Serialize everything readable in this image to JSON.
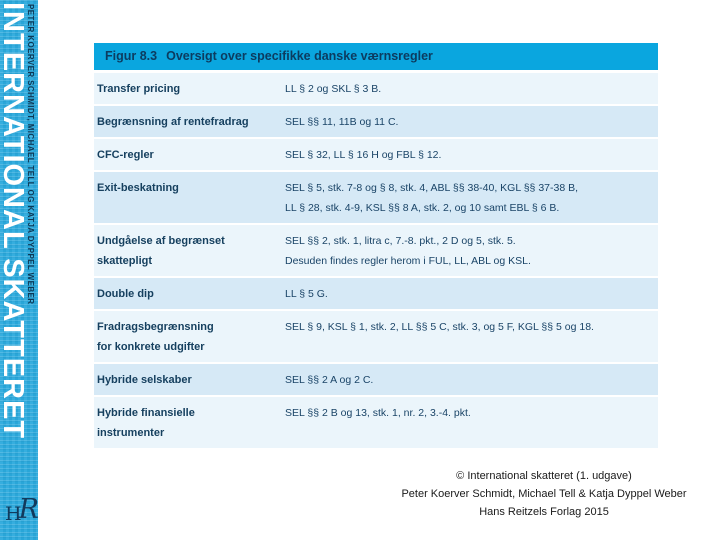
{
  "spine": {
    "title": "INTERNATIONAL SKATTERET",
    "authors": "PETER KOERVER SCHMIDT, MICHAEL TELL OG KATJA DYPPEL WEBER",
    "logo_h": "H",
    "logo_r": "R"
  },
  "figure": {
    "title_label": "Figur 8.3",
    "title_text": "Oversigt over specifikke danske værnsregler",
    "rows": [
      {
        "label_lines": [
          "Transfer pricing"
        ],
        "value_lines": [
          "LL § 2 og SKL § 3 B."
        ]
      },
      {
        "label_lines": [
          "Begrænsning af rentefradrag"
        ],
        "value_lines": [
          "SEL §§ 11, 11B og 11 C."
        ]
      },
      {
        "label_lines": [
          "CFC-regler"
        ],
        "value_lines": [
          "SEL § 32, LL § 16 H og FBL § 12."
        ]
      },
      {
        "label_lines": [
          "Exit-beskatning"
        ],
        "value_lines": [
          "SEL § 5, stk. 7-8 og § 8, stk. 4, ABL §§ 38-40, KGL §§ 37-38 B,",
          "LL § 28, stk. 4-9, KSL §§ 8 A, stk. 2, og 10 samt EBL § 6 B."
        ]
      },
      {
        "label_lines": [
          "Undgåelse af begrænset",
          "skattepligt"
        ],
        "value_lines": [
          "SEL §§ 2, stk. 1, litra c, 7.-8. pkt., 2 D og 5, stk. 5.",
          "Desuden findes regler herom i FUL, LL, ABL og KSL."
        ]
      },
      {
        "label_lines": [
          "Double dip"
        ],
        "value_lines": [
          "LL § 5 G."
        ]
      },
      {
        "label_lines": [
          "Fradragsbegrænsning",
          "for konkrete udgifter"
        ],
        "value_lines": [
          "SEL § 9, KSL § 1, stk. 2, LL §§ 5 C, stk. 3, og 5 F, KGL §§ 5 og 18."
        ]
      },
      {
        "label_lines": [
          "Hybride selskaber"
        ],
        "value_lines": [
          "SEL §§ 2 A og 2 C."
        ]
      },
      {
        "label_lines": [
          "Hybride finansielle",
          "instrumenter"
        ],
        "value_lines": [
          "SEL §§ 2 B og 13, stk. 1, nr. 2, 3.-4. pkt."
        ]
      }
    ]
  },
  "footer": {
    "line1": "© International skatteret (1. udgave)",
    "line2": "Peter Koerver Schmidt, Michael Tell & Katja Dyppel Weber",
    "line3": "Hans Reitzels Forlag 2015"
  },
  "colors": {
    "header_bar": "#0aa6df",
    "spine": "#2baadd",
    "row_light": "#ebf5fb",
    "row_dark": "#d6e9f6",
    "text_navy": "#16405f",
    "spine_author_text": "#0d3856"
  }
}
